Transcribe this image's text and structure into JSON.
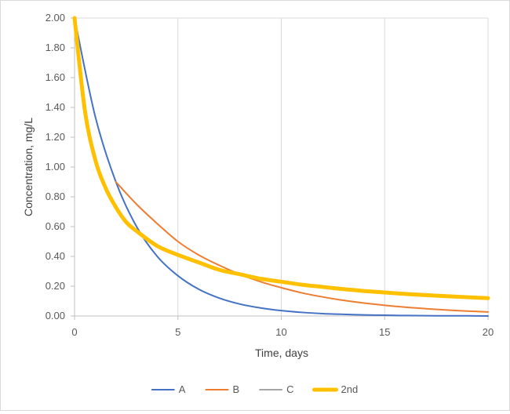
{
  "chart_data": {
    "type": "line",
    "title": "",
    "xlabel": "Time, days",
    "ylabel": "Concentration, mg/L",
    "xlim": [
      0,
      20
    ],
    "ylim": [
      0,
      2.0
    ],
    "x_ticks": [
      0,
      5,
      10,
      15,
      20
    ],
    "x_tick_labels": [
      "0",
      "5",
      "10",
      "15",
      "20"
    ],
    "y_ticks": [
      0,
      0.2,
      0.4,
      0.6,
      0.8,
      1.0,
      1.2,
      1.4,
      1.6,
      1.8,
      2.0
    ],
    "y_tick_labels": [
      "0.00",
      "0.20",
      "0.40",
      "0.60",
      "0.80",
      "1.00",
      "1.20",
      "1.40",
      "1.60",
      "1.80",
      "2.00"
    ],
    "grid": "vertical",
    "legend": "bottom",
    "series": [
      {
        "name": "A",
        "color": "#4472c4",
        "width": 2,
        "points": [
          [
            0,
            2.0
          ],
          [
            1,
            1.34
          ],
          [
            2,
            0.9
          ],
          [
            3,
            0.6
          ],
          [
            4,
            0.4
          ],
          [
            5,
            0.27
          ],
          [
            6,
            0.18
          ],
          [
            7,
            0.12
          ],
          [
            8,
            0.08
          ],
          [
            9,
            0.054
          ],
          [
            10,
            0.036
          ],
          [
            11,
            0.024
          ],
          [
            12,
            0.016
          ],
          [
            13,
            0.011
          ],
          [
            14,
            0.007
          ],
          [
            15,
            0.005
          ],
          [
            16,
            0.003
          ],
          [
            17,
            0.002
          ],
          [
            18,
            0.001
          ],
          [
            19,
            0.001
          ],
          [
            20,
            0.0
          ]
        ]
      },
      {
        "name": "B",
        "color": "#ed7d31",
        "width": 2,
        "points": [
          [
            2,
            0.9
          ],
          [
            3,
            0.75
          ],
          [
            4,
            0.62
          ],
          [
            5,
            0.5
          ],
          [
            6,
            0.41
          ],
          [
            7,
            0.34
          ],
          [
            8,
            0.28
          ],
          [
            9,
            0.23
          ],
          [
            10,
            0.19
          ],
          [
            11,
            0.155
          ],
          [
            12,
            0.128
          ],
          [
            13,
            0.105
          ],
          [
            14,
            0.087
          ],
          [
            15,
            0.072
          ],
          [
            16,
            0.059
          ],
          [
            17,
            0.049
          ],
          [
            18,
            0.04
          ],
          [
            19,
            0.033
          ],
          [
            20,
            0.027
          ]
        ]
      },
      {
        "name": "C",
        "color": "#a5a5a5",
        "width": 2,
        "points": []
      },
      {
        "name": "2nd",
        "color": "#ffc000",
        "width": 5,
        "points": [
          [
            0,
            2.0
          ],
          [
            0.5,
            1.38
          ],
          [
            1,
            1.05
          ],
          [
            1.5,
            0.86
          ],
          [
            2,
            0.73
          ],
          [
            2.5,
            0.63
          ],
          [
            3,
            0.57
          ],
          [
            4,
            0.47
          ],
          [
            5,
            0.41
          ],
          [
            6,
            0.36
          ],
          [
            7,
            0.31
          ],
          [
            8,
            0.28
          ],
          [
            9,
            0.25
          ],
          [
            10,
            0.23
          ],
          [
            11,
            0.21
          ],
          [
            12,
            0.195
          ],
          [
            13,
            0.18
          ],
          [
            14,
            0.168
          ],
          [
            15,
            0.158
          ],
          [
            16,
            0.148
          ],
          [
            17,
            0.14
          ],
          [
            18,
            0.133
          ],
          [
            19,
            0.126
          ],
          [
            20,
            0.12
          ]
        ]
      }
    ]
  }
}
